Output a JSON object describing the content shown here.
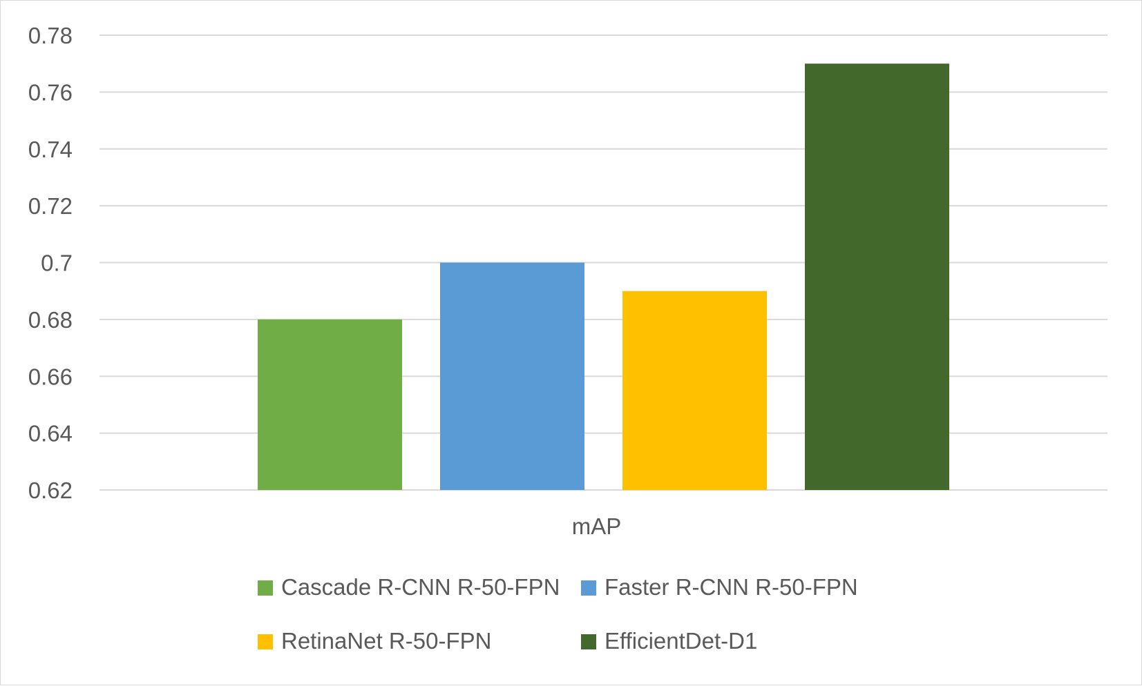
{
  "chart_data": {
    "type": "bar",
    "categories": [
      "mAP"
    ],
    "series": [
      {
        "name": "Cascade R-CNN R-50-FPN",
        "values": [
          0.68
        ],
        "color": "#70ad47"
      },
      {
        "name": "Faster R-CNN R-50-FPN",
        "values": [
          0.7
        ],
        "color": "#5b9bd5"
      },
      {
        "name": "RetinaNet R-50-FPN",
        "values": [
          0.69
        ],
        "color": "#ffc000"
      },
      {
        "name": "EfficientDet-D1",
        "values": [
          0.77
        ],
        "color": "#43682b"
      }
    ],
    "yticks": [
      "0.62",
      "0.64",
      "0.66",
      "0.68",
      "0.7",
      "0.72",
      "0.74",
      "0.76",
      "0.78"
    ],
    "ylim": [
      0.62,
      0.78
    ],
    "grid": true,
    "legend_position": "bottom",
    "gridline_color": "#d9d9d9"
  }
}
